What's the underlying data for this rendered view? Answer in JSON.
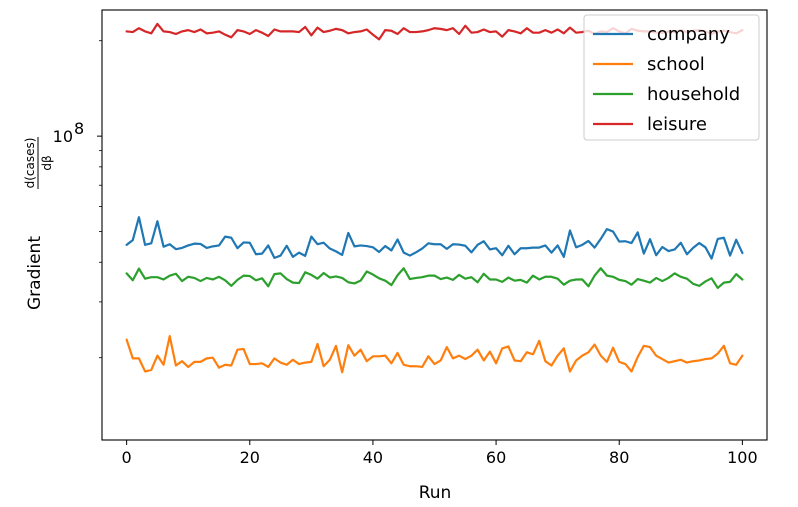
{
  "chart_data": {
    "type": "line",
    "title": "",
    "xlabel": "Run",
    "ylabel_prefix": "Gradient",
    "ylabel_numerator": "d(cases)",
    "ylabel_denominator": "dβ",
    "yscale": "log",
    "xlim": [
      -4,
      104
    ],
    "ylim": [
      11000000,
      250000000
    ],
    "xticks": [
      0,
      20,
      40,
      60,
      80,
      100
    ],
    "yticks_major": [
      {
        "value": 100000000,
        "label_base": "10",
        "label_exp": "8"
      }
    ],
    "yticks_minor": [
      20000000,
      30000000,
      40000000,
      50000000,
      60000000,
      70000000,
      80000000,
      90000000,
      200000000
    ],
    "grid": false,
    "legend_position": "top-right",
    "series": [
      {
        "name": "company",
        "color": "#1f77b4",
        "values": [
          45.4,
          47.0,
          55.5,
          45.4,
          45.9,
          53.9,
          44.8,
          45.6,
          44.0,
          44.4,
          45.2,
          45.8,
          45.7,
          44.4,
          44.9,
          45.2,
          48.2,
          47.8,
          44.3,
          46.2,
          46.1,
          42.4,
          42.6,
          45.2,
          41.3,
          42.0,
          45.1,
          41.6,
          42.9,
          41.9,
          48.2,
          45.6,
          46.1,
          44.2,
          43.3,
          42.2,
          49.5,
          44.9,
          45.2,
          45.0,
          44.6,
          43.1,
          45.0,
          43.6,
          47.2,
          42.9,
          42.0,
          43.0,
          44.2,
          45.9,
          45.6,
          45.6,
          44.1,
          45.6,
          45.5,
          45.1,
          43.0,
          45.4,
          46.6,
          43.9,
          44.3,
          42.1,
          45.1,
          42.4,
          44.3,
          44.3,
          44.5,
          44.5,
          45.2,
          42.9,
          45.2,
          41.6,
          50.4,
          44.6,
          45.4,
          46.7,
          44.5,
          47.4,
          50.9,
          50.0,
          46.5,
          46.6,
          46.0,
          49.7,
          42.6,
          47.3,
          42.1,
          44.7,
          43.4,
          43.9,
          46.1,
          42.4,
          44.4,
          46.0,
          44.6,
          41.1,
          47.4,
          47.8,
          42.0,
          47.1,
          42.8
        ]
      },
      {
        "name": "school",
        "color": "#ff7f0e",
        "values": [
          22.8,
          19.9,
          19.9,
          18.1,
          18.3,
          20.3,
          19.0,
          23.4,
          18.9,
          19.5,
          18.7,
          19.4,
          19.4,
          19.9,
          20.0,
          18.6,
          19.0,
          18.9,
          21.2,
          21.3,
          19.1,
          19.1,
          19.2,
          18.7,
          19.9,
          19.3,
          19.0,
          19.7,
          19.1,
          19.3,
          19.4,
          22.1,
          18.8,
          19.7,
          21.8,
          18.0,
          21.9,
          20.3,
          21.2,
          19.5,
          20.2,
          20.2,
          20.3,
          19.2,
          20.7,
          19.0,
          18.8,
          18.8,
          18.7,
          20.2,
          19.1,
          19.6,
          21.6,
          19.9,
          20.3,
          19.8,
          20.3,
          21.2,
          19.6,
          20.9,
          19.2,
          21.4,
          21.7,
          19.6,
          19.5,
          20.8,
          20.5,
          22.6,
          19.5,
          18.9,
          20.3,
          21.4,
          18.1,
          19.6,
          20.3,
          20.8,
          22.0,
          20.3,
          19.4,
          21.5,
          19.4,
          19.1,
          18.1,
          20.1,
          21.8,
          21.6,
          20.3,
          19.8,
          19.3,
          19.5,
          19.7,
          19.3,
          19.5,
          19.6,
          19.8,
          19.9,
          20.6,
          21.8,
          19.2,
          19.0,
          20.3
        ]
      },
      {
        "name": "household",
        "color": "#2ca02c",
        "values": [
          36.9,
          35.1,
          38.2,
          35.5,
          35.9,
          35.9,
          35.3,
          36.3,
          36.8,
          34.9,
          36.0,
          35.7,
          34.9,
          35.7,
          35.3,
          36.0,
          35.1,
          33.7,
          35.2,
          36.3,
          36.2,
          35.1,
          35.6,
          33.6,
          36.7,
          36.9,
          35.4,
          34.5,
          34.4,
          37.2,
          36.5,
          35.5,
          37.0,
          35.8,
          36.1,
          35.7,
          34.6,
          34.3,
          35.0,
          37.4,
          36.6,
          35.6,
          35.0,
          33.9,
          36.4,
          38.3,
          35.4,
          35.7,
          35.9,
          36.3,
          36.3,
          35.4,
          35.8,
          35.2,
          36.5,
          35.5,
          35.9,
          34.6,
          36.8,
          35.3,
          35.3,
          34.7,
          35.8,
          35.0,
          35.2,
          34.5,
          36.3,
          35.3,
          36.0,
          36.0,
          35.5,
          34.0,
          35.0,
          35.3,
          35.3,
          33.6,
          36.3,
          38.3,
          36.3,
          36.0,
          35.2,
          34.9,
          34.0,
          35.4,
          35.0,
          34.5,
          35.7,
          34.9,
          35.7,
          36.9,
          36.0,
          35.5,
          34.2,
          33.7,
          34.8,
          35.6,
          33.2,
          34.5,
          34.7,
          36.7,
          35.3
        ]
      },
      {
        "name": "leisure",
        "color": "#d62728",
        "values": [
          214,
          213,
          219,
          214,
          211,
          226,
          214,
          213,
          210,
          214,
          216,
          213,
          217,
          211,
          212,
          214,
          209,
          205,
          216,
          214,
          210,
          216,
          212,
          207,
          217,
          214,
          214,
          214,
          213,
          221,
          208,
          220,
          213,
          215,
          218,
          216,
          211,
          213,
          214,
          217,
          209,
          202,
          216,
          215,
          210,
          219,
          213,
          213,
          214,
          216,
          219,
          218,
          216,
          219,
          210,
          223,
          212,
          213,
          217,
          213,
          214,
          206,
          216,
          214,
          211,
          219,
          212,
          212,
          216,
          212,
          217,
          211,
          220,
          212,
          213,
          215,
          210,
          214,
          213,
          219,
          214,
          211,
          218,
          215,
          214,
          214,
          212,
          212,
          214,
          213,
          216,
          213,
          215,
          216,
          214,
          210,
          214,
          215,
          213,
          211,
          216
        ]
      }
    ]
  }
}
